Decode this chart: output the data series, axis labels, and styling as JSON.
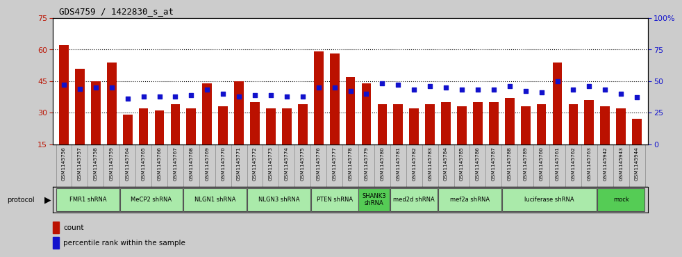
{
  "title": "GDS4759 / 1422830_s_at",
  "samples": [
    "GSM1145756",
    "GSM1145757",
    "GSM1145758",
    "GSM1145759",
    "GSM1145764",
    "GSM1145765",
    "GSM1145766",
    "GSM1145767",
    "GSM1145768",
    "GSM1145769",
    "GSM1145770",
    "GSM1145771",
    "GSM1145772",
    "GSM1145773",
    "GSM1145774",
    "GSM1145775",
    "GSM1145776",
    "GSM1145777",
    "GSM1145778",
    "GSM1145779",
    "GSM1145780",
    "GSM1145781",
    "GSM1145782",
    "GSM1145783",
    "GSM1145784",
    "GSM1145785",
    "GSM1145786",
    "GSM1145787",
    "GSM1145788",
    "GSM1145789",
    "GSM1145760",
    "GSM1145761",
    "GSM1145762",
    "GSM1145763",
    "GSM1145942",
    "GSM1145943",
    "GSM1145944"
  ],
  "counts": [
    62,
    51,
    45,
    54,
    29,
    32,
    31,
    34,
    32,
    44,
    33,
    45,
    35,
    32,
    32,
    34,
    59,
    58,
    47,
    44,
    34,
    34,
    32,
    34,
    35,
    33,
    35,
    35,
    37,
    33,
    34,
    54,
    34,
    36,
    33,
    32,
    27
  ],
  "percentiles": [
    47,
    44,
    45,
    45,
    36,
    38,
    38,
    38,
    39,
    43,
    40,
    38,
    39,
    39,
    38,
    38,
    45,
    45,
    42,
    40,
    48,
    47,
    43,
    46,
    45,
    43,
    43,
    43,
    46,
    42,
    41,
    50,
    43,
    46,
    43,
    40,
    37
  ],
  "protocols": [
    {
      "label": "FMR1 shRNA",
      "start": 0,
      "end": 4,
      "color": "#AAEAAA"
    },
    {
      "label": "MeCP2 shRNA",
      "start": 4,
      "end": 8,
      "color": "#AAEAAA"
    },
    {
      "label": "NLGN1 shRNA",
      "start": 8,
      "end": 12,
      "color": "#AAEAAA"
    },
    {
      "label": "NLGN3 shRNA",
      "start": 12,
      "end": 16,
      "color": "#AAEAAA"
    },
    {
      "label": "PTEN shRNA",
      "start": 16,
      "end": 19,
      "color": "#AAEAAA"
    },
    {
      "label": "SHANK3\nshRNA",
      "start": 19,
      "end": 21,
      "color": "#55CC55"
    },
    {
      "label": "med2d shRNA",
      "start": 21,
      "end": 24,
      "color": "#AAEAAA"
    },
    {
      "label": "mef2a shRNA",
      "start": 24,
      "end": 28,
      "color": "#AAEAAA"
    },
    {
      "label": "luciferase shRNA",
      "start": 28,
      "end": 34,
      "color": "#AAEAAA"
    },
    {
      "label": "mock",
      "start": 34,
      "end": 37,
      "color": "#55CC55"
    }
  ],
  "ylim_left": [
    15,
    75
  ],
  "ylim_right": [
    0,
    100
  ],
  "yticks_left": [
    15,
    30,
    45,
    60,
    75
  ],
  "yticks_right": [
    0,
    25,
    50,
    75,
    100
  ],
  "bar_color": "#BB1100",
  "dot_color": "#1111CC",
  "bg_color": "#CCCCCC",
  "plot_bg": "#FFFFFF",
  "tick_bg": "#CCCCCC",
  "left_tick_color": "#BB1100",
  "right_tick_color": "#1111CC"
}
